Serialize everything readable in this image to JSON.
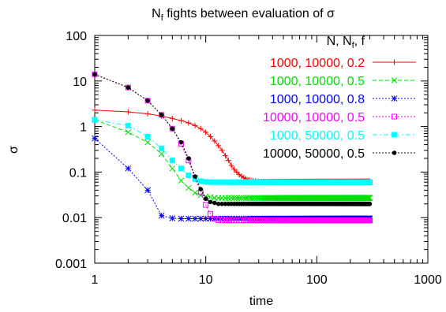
{
  "chart_data": {
    "type": "line",
    "title": {
      "main_base": "N",
      "main_sub": "f",
      "main_rest": " fights between evaluation of σ"
    },
    "xlabel": "time",
    "ylabel": "σ",
    "x_scale": "log",
    "y_scale": "log",
    "xlim": [
      1,
      1000
    ],
    "ylim": [
      0.001,
      100
    ],
    "x_ticks": [
      {
        "value": 1,
        "label": "1"
      },
      {
        "value": 10,
        "label": "10"
      },
      {
        "value": 100,
        "label": "100"
      },
      {
        "value": 1000,
        "label": "1000"
      }
    ],
    "y_ticks": [
      {
        "value": 0.001,
        "label": "0.001"
      },
      {
        "value": 0.01,
        "label": "0.01"
      },
      {
        "value": 0.1,
        "label": "0.1"
      },
      {
        "value": 1,
        "label": "1"
      },
      {
        "value": 10,
        "label": "10"
      },
      {
        "value": 100,
        "label": "100"
      }
    ],
    "grid": false,
    "legend": {
      "placement": "top-right",
      "header_parts": [
        "N, N",
        "f",
        ", f"
      ]
    },
    "series": [
      {
        "name": "1000, 10000, 0.2",
        "color": "#ff0000",
        "marker": "plus",
        "dash": "solid",
        "x": [
          1,
          2,
          3,
          4,
          5,
          6,
          7,
          8,
          9,
          10,
          11,
          12,
          13,
          14,
          15,
          16,
          17,
          18,
          19,
          20,
          22,
          24,
          26,
          28,
          30,
          300
        ],
        "y": [
          2.3,
          2.1,
          1.9,
          1.7,
          1.5,
          1.35,
          1.2,
          1.05,
          0.9,
          0.75,
          0.6,
          0.48,
          0.38,
          0.3,
          0.23,
          0.18,
          0.14,
          0.115,
          0.1,
          0.088,
          0.075,
          0.068,
          0.065,
          0.063,
          0.062,
          0.062
        ]
      },
      {
        "name": "1000, 10000, 0.5",
        "color": "#00dd00",
        "marker": "cross",
        "dash": "dashed",
        "x": [
          1,
          2,
          3,
          4,
          5,
          6,
          7,
          8,
          9,
          10,
          11,
          12,
          13,
          14,
          15,
          300
        ],
        "y": [
          1.4,
          0.75,
          0.45,
          0.25,
          0.12,
          0.065,
          0.045,
          0.035,
          0.031,
          0.029,
          0.028,
          0.027,
          0.027,
          0.027,
          0.027,
          0.027
        ]
      },
      {
        "name": "1000, 10000, 0.8",
        "color": "#0000ff",
        "marker": "star",
        "dash": "dotted",
        "x": [
          1,
          2,
          3,
          4,
          5,
          6,
          7,
          8,
          9,
          10,
          300
        ],
        "y": [
          0.55,
          0.12,
          0.04,
          0.011,
          0.0097,
          0.0095,
          0.0095,
          0.0095,
          0.0095,
          0.0095,
          0.0095
        ]
      },
      {
        "name": "10000, 10000, 0.5",
        "color": "#ff00ff",
        "marker": "open-square",
        "dash": "dotted",
        "x": [
          1,
          2,
          3,
          4,
          5,
          6,
          7,
          8,
          9,
          10,
          11,
          12,
          13,
          14,
          15,
          300
        ],
        "y": [
          14,
          7.2,
          3.7,
          1.8,
          0.9,
          0.42,
          0.18,
          0.075,
          0.036,
          0.019,
          0.012,
          0.0095,
          0.0088,
          0.0087,
          0.0087,
          0.0087
        ]
      },
      {
        "name": "1000, 50000, 0.5",
        "color": "#00ffff",
        "marker": "filled-square",
        "dash": "dashdot",
        "x": [
          1,
          2,
          3,
          4,
          5,
          6,
          7,
          8,
          9,
          10,
          11,
          12,
          300
        ],
        "y": [
          1.4,
          1.05,
          0.6,
          0.33,
          0.18,
          0.12,
          0.085,
          0.07,
          0.063,
          0.061,
          0.06,
          0.06,
          0.06
        ]
      },
      {
        "name": "10000, 50000, 0.5",
        "color": "#000000",
        "marker": "filled-circle",
        "dash": "dotted",
        "x": [
          1,
          2,
          3,
          4,
          5,
          6,
          7,
          8,
          9,
          10,
          11,
          12,
          13,
          14,
          15,
          300
        ],
        "y": [
          14,
          7.2,
          3.7,
          1.8,
          0.9,
          0.45,
          0.2,
          0.08,
          0.042,
          0.026,
          0.022,
          0.021,
          0.02,
          0.02,
          0.02,
          0.02
        ]
      }
    ]
  }
}
